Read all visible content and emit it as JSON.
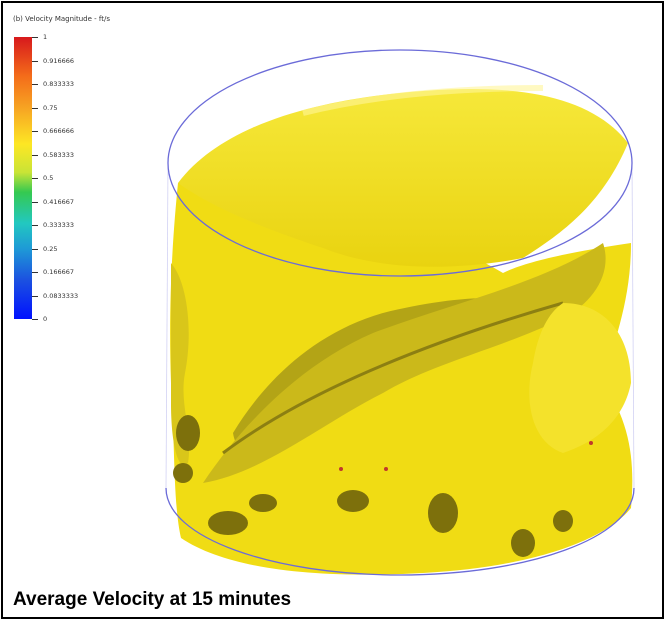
{
  "legend": {
    "title": "(b) Velocity Magnitude - ft/s",
    "labels": [
      "1",
      "0.916666",
      "0.833333",
      "0.75",
      "0.666666",
      "0.583333",
      "0.5",
      "0.416667",
      "0.333333",
      "0.25",
      "0.166667",
      "0.0833333",
      "0"
    ]
  },
  "caption": "Average Velocity at 15 minutes",
  "colors": {
    "isosurface": "#f2e21a",
    "outline": "#6b6bd8",
    "frame": "#000000"
  }
}
